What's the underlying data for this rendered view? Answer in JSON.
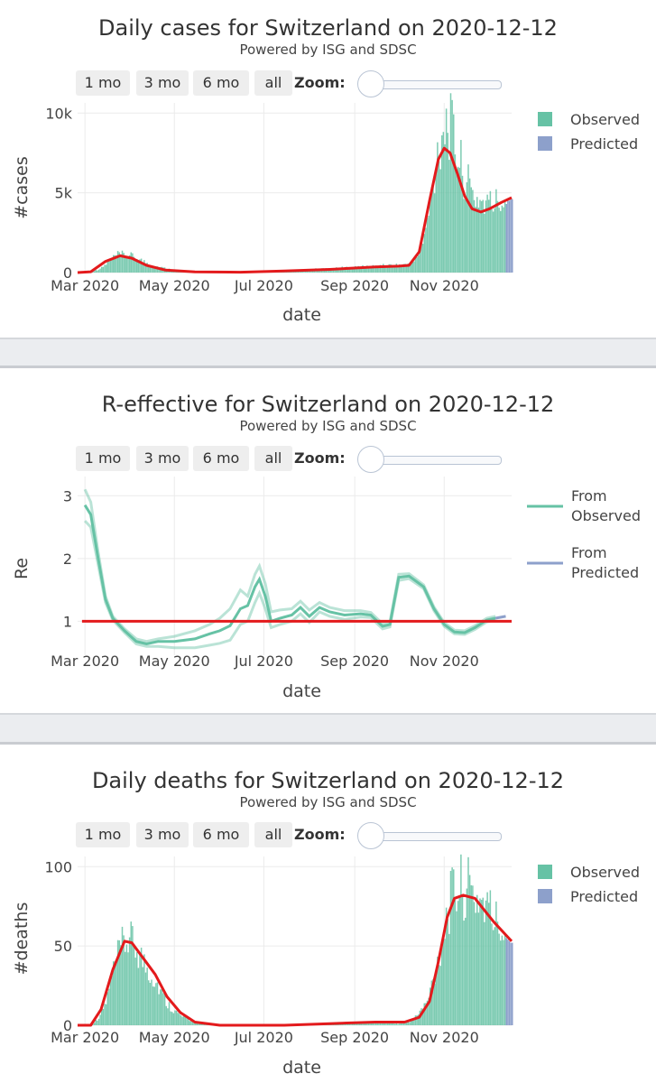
{
  "controls": {
    "buttons": [
      "1 mo",
      "3 mo",
      "6 mo",
      "all"
    ],
    "zoom_label": "Zoom:"
  },
  "colors": {
    "observed": "#66c2a5",
    "predicted": "#8da0cb",
    "fit": "#e31a1c"
  },
  "chart_data": [
    {
      "type": "bar",
      "title": "Daily cases for Switzerland on 2020-12-12",
      "subtitle": "Powered by ISG and SDSC",
      "xlabel": "date",
      "ylabel": "#cases",
      "x_range": [
        "2020-02-25",
        "2020-12-17"
      ],
      "ylim": [
        0,
        10300
      ],
      "yticks": [
        {
          "v": 0,
          "label": "0"
        },
        {
          "v": 5000,
          "label": "5k"
        },
        {
          "v": 10000,
          "label": "10k"
        }
      ],
      "xticks": [
        "Mar 2020",
        "May 2020",
        "Jul 2020",
        "Sep 2020",
        "Nov 2020"
      ],
      "legend": [
        "Observed",
        "Predicted"
      ],
      "legend_position": "top-right",
      "observed": {
        "start": "2020-02-25",
        "end": "2020-12-12",
        "points": [
          [
            "2020-02-25",
            0
          ],
          [
            "2020-03-05",
            30
          ],
          [
            "2020-03-12",
            300
          ],
          [
            "2020-03-18",
            800
          ],
          [
            "2020-03-22",
            1100
          ],
          [
            "2020-03-28",
            1150
          ],
          [
            "2020-04-03",
            1000
          ],
          [
            "2020-04-10",
            700
          ],
          [
            "2020-04-18",
            400
          ],
          [
            "2020-04-28",
            200
          ],
          [
            "2020-05-10",
            60
          ],
          [
            "2020-05-25",
            25
          ],
          [
            "2020-06-15",
            30
          ],
          [
            "2020-07-01",
            80
          ],
          [
            "2020-07-20",
            150
          ],
          [
            "2020-08-10",
            250
          ],
          [
            "2020-09-01",
            350
          ],
          [
            "2020-09-20",
            450
          ],
          [
            "2020-10-05",
            500
          ],
          [
            "2020-10-12",
            800
          ],
          [
            "2020-10-18",
            2200
          ],
          [
            "2020-10-23",
            5000
          ],
          [
            "2020-10-27",
            7800
          ],
          [
            "2020-10-31",
            9500
          ],
          [
            "2020-11-03",
            9800
          ],
          [
            "2020-11-06",
            9000
          ],
          [
            "2020-11-10",
            7500
          ],
          [
            "2020-11-15",
            6000
          ],
          [
            "2020-11-20",
            5000
          ],
          [
            "2020-11-26",
            4600
          ],
          [
            "2020-12-02",
            4400
          ],
          [
            "2020-12-12",
            4700
          ]
        ]
      },
      "predicted": {
        "start": "2020-12-13",
        "end": "2020-12-17",
        "values": [
          4300,
          4500,
          4500,
          4600,
          4600
        ]
      },
      "fit": [
        [
          "2020-02-25",
          0
        ],
        [
          "2020-03-05",
          50
        ],
        [
          "2020-03-15",
          700
        ],
        [
          "2020-03-25",
          1050
        ],
        [
          "2020-04-02",
          900
        ],
        [
          "2020-04-12",
          450
        ],
        [
          "2020-04-25",
          150
        ],
        [
          "2020-05-15",
          40
        ],
        [
          "2020-06-15",
          20
        ],
        [
          "2020-07-15",
          100
        ],
        [
          "2020-08-15",
          200
        ],
        [
          "2020-09-15",
          350
        ],
        [
          "2020-10-01",
          400
        ],
        [
          "2020-10-08",
          450
        ],
        [
          "2020-10-15",
          1300
        ],
        [
          "2020-10-22",
          4500
        ],
        [
          "2020-10-28",
          7100
        ],
        [
          "2020-11-01",
          7800
        ],
        [
          "2020-11-05",
          7500
        ],
        [
          "2020-11-10",
          6200
        ],
        [
          "2020-11-15",
          4800
        ],
        [
          "2020-11-20",
          4000
        ],
        [
          "2020-11-26",
          3800
        ],
        [
          "2020-12-02",
          4000
        ],
        [
          "2020-12-10",
          4400
        ],
        [
          "2020-12-17",
          4700
        ]
      ]
    },
    {
      "type": "line",
      "title": "R-effective for Switzerland on 2020-12-12",
      "subtitle": "Powered by ISG and SDSC",
      "xlabel": "date",
      "ylabel": "Re",
      "x_range": [
        "2020-02-25",
        "2020-12-17"
      ],
      "ylim": [
        0.46,
        3.22
      ],
      "yticks": [
        {
          "v": 1,
          "label": "1"
        },
        {
          "v": 2,
          "label": "2"
        },
        {
          "v": 3,
          "label": "3"
        }
      ],
      "xticks": [
        "Mar 2020",
        "May 2020",
        "Jul 2020",
        "Sep 2020",
        "Nov 2020"
      ],
      "legend": [
        "From\nObserved",
        "From\nPredicted"
      ],
      "legend_position": "top-right",
      "reference_line": 1,
      "series_main": [
        [
          "2020-03-01",
          2.85
        ],
        [
          "2020-03-05",
          2.7
        ],
        [
          "2020-03-10",
          2.0
        ],
        [
          "2020-03-15",
          1.35
        ],
        [
          "2020-03-20",
          1.05
        ],
        [
          "2020-03-28",
          0.85
        ],
        [
          "2020-04-05",
          0.68
        ],
        [
          "2020-04-12",
          0.64
        ],
        [
          "2020-04-20",
          0.68
        ],
        [
          "2020-05-01",
          0.68
        ],
        [
          "2020-05-15",
          0.72
        ],
        [
          "2020-05-25",
          0.8
        ],
        [
          "2020-06-01",
          0.85
        ],
        [
          "2020-06-08",
          0.93
        ],
        [
          "2020-06-15",
          1.2
        ],
        [
          "2020-06-20",
          1.25
        ],
        [
          "2020-06-25",
          1.55
        ],
        [
          "2020-06-28",
          1.67
        ],
        [
          "2020-07-02",
          1.4
        ],
        [
          "2020-07-06",
          1.0
        ],
        [
          "2020-07-12",
          1.05
        ],
        [
          "2020-07-20",
          1.1
        ],
        [
          "2020-07-26",
          1.22
        ],
        [
          "2020-08-01",
          1.08
        ],
        [
          "2020-08-08",
          1.22
        ],
        [
          "2020-08-15",
          1.15
        ],
        [
          "2020-08-25",
          1.1
        ],
        [
          "2020-09-05",
          1.12
        ],
        [
          "2020-09-12",
          1.1
        ],
        [
          "2020-09-20",
          0.92
        ],
        [
          "2020-09-25",
          0.95
        ],
        [
          "2020-10-01",
          1.7
        ],
        [
          "2020-10-08",
          1.72
        ],
        [
          "2020-10-18",
          1.55
        ],
        [
          "2020-10-25",
          1.2
        ],
        [
          "2020-11-01",
          0.95
        ],
        [
          "2020-11-08",
          0.83
        ],
        [
          "2020-11-15",
          0.82
        ],
        [
          "2020-11-22",
          0.9
        ],
        [
          "2020-11-30",
          1.02
        ],
        [
          "2020-12-06",
          1.05
        ]
      ],
      "series_upper": [
        [
          "2020-03-01",
          3.1
        ],
        [
          "2020-03-05",
          2.9
        ],
        [
          "2020-03-10",
          2.1
        ],
        [
          "2020-03-15",
          1.4
        ],
        [
          "2020-03-20",
          1.08
        ],
        [
          "2020-03-28",
          0.88
        ],
        [
          "2020-04-05",
          0.72
        ],
        [
          "2020-04-12",
          0.68
        ],
        [
          "2020-04-20",
          0.72
        ],
        [
          "2020-05-01",
          0.76
        ],
        [
          "2020-05-15",
          0.85
        ],
        [
          "2020-05-25",
          0.95
        ],
        [
          "2020-06-01",
          1.05
        ],
        [
          "2020-06-08",
          1.2
        ],
        [
          "2020-06-15",
          1.5
        ],
        [
          "2020-06-20",
          1.4
        ],
        [
          "2020-06-25",
          1.75
        ],
        [
          "2020-06-28",
          1.88
        ],
        [
          "2020-07-02",
          1.6
        ],
        [
          "2020-07-06",
          1.15
        ],
        [
          "2020-07-12",
          1.18
        ],
        [
          "2020-07-20",
          1.2
        ],
        [
          "2020-07-26",
          1.32
        ],
        [
          "2020-08-01",
          1.18
        ],
        [
          "2020-08-08",
          1.3
        ],
        [
          "2020-08-15",
          1.22
        ],
        [
          "2020-08-25",
          1.17
        ],
        [
          "2020-09-05",
          1.17
        ],
        [
          "2020-09-12",
          1.14
        ],
        [
          "2020-09-20",
          0.96
        ],
        [
          "2020-09-25",
          0.99
        ],
        [
          "2020-10-01",
          1.75
        ],
        [
          "2020-10-08",
          1.76
        ],
        [
          "2020-10-18",
          1.58
        ],
        [
          "2020-10-25",
          1.23
        ],
        [
          "2020-11-01",
          0.98
        ],
        [
          "2020-11-08",
          0.86
        ],
        [
          "2020-11-15",
          0.85
        ],
        [
          "2020-11-22",
          0.93
        ],
        [
          "2020-11-30",
          1.05
        ],
        [
          "2020-12-06",
          1.08
        ]
      ],
      "series_lower": [
        [
          "2020-03-01",
          2.6
        ],
        [
          "2020-03-05",
          2.5
        ],
        [
          "2020-03-10",
          1.9
        ],
        [
          "2020-03-15",
          1.3
        ],
        [
          "2020-03-20",
          1.02
        ],
        [
          "2020-03-28",
          0.82
        ],
        [
          "2020-04-05",
          0.64
        ],
        [
          "2020-04-12",
          0.6
        ],
        [
          "2020-04-20",
          0.6
        ],
        [
          "2020-05-01",
          0.58
        ],
        [
          "2020-05-15",
          0.58
        ],
        [
          "2020-05-25",
          0.62
        ],
        [
          "2020-06-01",
          0.65
        ],
        [
          "2020-06-08",
          0.7
        ],
        [
          "2020-06-15",
          0.95
        ],
        [
          "2020-06-20",
          1.0
        ],
        [
          "2020-06-25",
          1.3
        ],
        [
          "2020-06-28",
          1.45
        ],
        [
          "2020-07-02",
          1.2
        ],
        [
          "2020-07-06",
          0.9
        ],
        [
          "2020-07-12",
          0.95
        ],
        [
          "2020-07-20",
          1.0
        ],
        [
          "2020-07-26",
          1.12
        ],
        [
          "2020-08-01",
          0.98
        ],
        [
          "2020-08-08",
          1.15
        ],
        [
          "2020-08-15",
          1.08
        ],
        [
          "2020-08-25",
          1.03
        ],
        [
          "2020-09-05",
          1.07
        ],
        [
          "2020-09-12",
          1.06
        ],
        [
          "2020-09-20",
          0.88
        ],
        [
          "2020-09-25",
          0.91
        ],
        [
          "2020-10-01",
          1.65
        ],
        [
          "2020-10-08",
          1.68
        ],
        [
          "2020-10-18",
          1.52
        ],
        [
          "2020-10-25",
          1.17
        ],
        [
          "2020-11-01",
          0.92
        ],
        [
          "2020-11-08",
          0.8
        ],
        [
          "2020-11-15",
          0.79
        ],
        [
          "2020-11-22",
          0.87
        ],
        [
          "2020-11-30",
          0.99
        ],
        [
          "2020-12-06",
          1.02
        ]
      ],
      "series_predicted": [
        [
          "2020-12-06",
          1.05
        ],
        [
          "2020-12-13",
          1.08
        ]
      ]
    },
    {
      "type": "bar",
      "title": "Daily deaths for Switzerland on 2020-12-12",
      "subtitle": "Powered by ISG and SDSC",
      "xlabel": "date",
      "ylabel": "#deaths",
      "x_range": [
        "2020-02-25",
        "2020-12-17"
      ],
      "ylim": [
        0,
        103
      ],
      "yticks": [
        {
          "v": 0,
          "label": "0"
        },
        {
          "v": 50,
          "label": "50"
        },
        {
          "v": 100,
          "label": "100"
        }
      ],
      "xticks": [
        "Mar 2020",
        "May 2020",
        "Jul 2020",
        "Sep 2020",
        "Nov 2020"
      ],
      "legend": [
        "Observed",
        "Predicted"
      ],
      "legend_position": "top-right",
      "observed": {
        "start": "2020-02-25",
        "end": "2020-12-12",
        "points": [
          [
            "2020-02-25",
            0
          ],
          [
            "2020-03-05",
            0
          ],
          [
            "2020-03-10",
            5
          ],
          [
            "2020-03-15",
            15
          ],
          [
            "2020-03-20",
            35
          ],
          [
            "2020-03-25",
            50
          ],
          [
            "2020-03-30",
            56
          ],
          [
            "2020-04-05",
            50
          ],
          [
            "2020-04-10",
            40
          ],
          [
            "2020-04-15",
            33
          ],
          [
            "2020-04-20",
            25
          ],
          [
            "2020-04-25",
            15
          ],
          [
            "2020-04-30",
            10
          ],
          [
            "2020-05-05",
            6
          ],
          [
            "2020-05-12",
            3
          ],
          [
            "2020-05-20",
            1
          ],
          [
            "2020-06-01",
            0
          ],
          [
            "2020-07-01",
            0
          ],
          [
            "2020-08-01",
            1
          ],
          [
            "2020-09-01",
            1
          ],
          [
            "2020-09-20",
            2
          ],
          [
            "2020-10-01",
            1
          ],
          [
            "2020-10-10",
            3
          ],
          [
            "2020-10-20",
            15
          ],
          [
            "2020-10-28",
            45
          ],
          [
            "2020-11-03",
            75
          ],
          [
            "2020-11-08",
            88
          ],
          [
            "2020-11-14",
            90
          ],
          [
            "2020-11-20",
            85
          ],
          [
            "2020-11-28",
            80
          ],
          [
            "2020-12-04",
            70
          ],
          [
            "2020-12-12",
            60
          ]
        ]
      },
      "predicted": {
        "start": "2020-12-13",
        "end": "2020-12-17",
        "values": [
          55,
          54,
          53,
          52,
          52
        ]
      },
      "fit": [
        [
          "2020-02-25",
          0
        ],
        [
          "2020-03-05",
          0
        ],
        [
          "2020-03-12",
          10
        ],
        [
          "2020-03-20",
          35
        ],
        [
          "2020-03-28",
          53
        ],
        [
          "2020-04-02",
          52
        ],
        [
          "2020-04-10",
          42
        ],
        [
          "2020-04-18",
          32
        ],
        [
          "2020-04-26",
          18
        ],
        [
          "2020-05-05",
          8
        ],
        [
          "2020-05-15",
          2
        ],
        [
          "2020-06-01",
          0
        ],
        [
          "2020-07-15",
          0
        ],
        [
          "2020-08-15",
          1
        ],
        [
          "2020-09-15",
          2
        ],
        [
          "2020-10-05",
          2
        ],
        [
          "2020-10-15",
          5
        ],
        [
          "2020-10-22",
          15
        ],
        [
          "2020-10-28",
          40
        ],
        [
          "2020-11-03",
          68
        ],
        [
          "2020-11-08",
          80
        ],
        [
          "2020-11-14",
          82
        ],
        [
          "2020-11-22",
          80
        ],
        [
          "2020-11-28",
          73
        ],
        [
          "2020-12-05",
          65
        ],
        [
          "2020-12-12",
          58
        ],
        [
          "2020-12-17",
          53
        ]
      ]
    }
  ]
}
